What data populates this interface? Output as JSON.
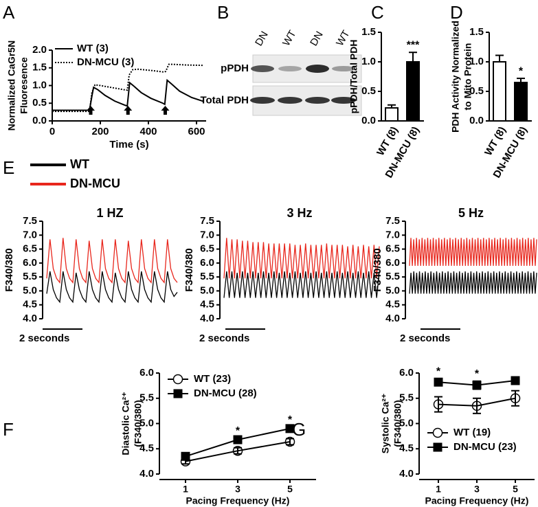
{
  "chart_data": [
    {
      "type": "line",
      "label": "A",
      "xlabel": "Time (s)",
      "ylabel": [
        "Normalized CaGr5N",
        "Fluoresence"
      ],
      "xlim": [
        0,
        640
      ],
      "xticks": [
        0,
        200,
        400,
        600
      ],
      "ylim": [
        0,
        2
      ],
      "yticks": [
        {
          "value": 0,
          "label": "0.0"
        },
        {
          "value": 0.5,
          "label": "0.5"
        },
        {
          "value": 1,
          "label": "1.0"
        },
        {
          "value": 1.5,
          "label": "1.5"
        },
        {
          "value": 2,
          "label": "2.0"
        }
      ],
      "legend": "upper left",
      "arrows": [
        160,
        315,
        470
      ],
      "series": [
        {
          "name": "WT (3)",
          "color": "#000000",
          "dash": "solid",
          "x": [
            0,
            155,
            165,
            172,
            190,
            220,
            260,
            300,
            312,
            322,
            340,
            370,
            410,
            460,
            468,
            478,
            495,
            530,
            580,
            630
          ],
          "values": [
            0.3,
            0.3,
            0.7,
            0.95,
            0.88,
            0.72,
            0.56,
            0.45,
            0.42,
            1.08,
            0.98,
            0.8,
            0.64,
            0.5,
            0.47,
            1.15,
            1.05,
            0.84,
            0.66,
            0.55
          ]
        },
        {
          "name": "DN-MCU (3)",
          "color": "#000000",
          "dash": "dotted",
          "x": [
            0,
            155,
            165,
            178,
            200,
            250,
            300,
            312,
            320,
            335,
            360,
            420,
            465,
            472,
            485,
            500,
            560,
            630
          ],
          "values": [
            0.27,
            0.27,
            0.8,
            1.02,
            1.0,
            0.94,
            0.88,
            0.87,
            1.3,
            1.45,
            1.46,
            1.42,
            1.38,
            1.4,
            1.6,
            1.6,
            1.58,
            1.57
          ]
        }
      ]
    },
    {
      "type": "blot",
      "label": "B",
      "lanes": [
        "DN",
        "WT",
        "DN",
        "WT"
      ],
      "rows": [
        "pPDH",
        "Total PDH"
      ]
    },
    {
      "type": "bar",
      "label": "C",
      "ylabel": [
        "pPDH/Total PDH"
      ],
      "categories": [
        "WT (8)",
        "DN-MCU (8)"
      ],
      "values": [
        0.22,
        1.0
      ],
      "errors": [
        0.05,
        0.16
      ],
      "colors": [
        "#ffffff",
        "#000000"
      ],
      "annotations": [
        null,
        "***"
      ],
      "ylim": [
        0,
        1.5
      ],
      "yticks": [
        {
          "value": 0,
          "label": "0.0"
        },
        {
          "value": 0.5,
          "label": "0.5"
        },
        {
          "value": 1,
          "label": "1.0"
        },
        {
          "value": 1.5,
          "label": "1.5"
        }
      ]
    },
    {
      "type": "bar",
      "label": "D",
      "ylabel": [
        "PDH Activity Normalized",
        "to Mito Protein"
      ],
      "categories": [
        "WT (8)",
        "DN-MCU (8)"
      ],
      "values": [
        1.0,
        0.65
      ],
      "errors": [
        0.11,
        0.07
      ],
      "colors": [
        "#ffffff",
        "#000000"
      ],
      "annotations": [
        null,
        "*"
      ],
      "ylim": [
        0,
        1.5
      ],
      "yticks": [
        {
          "value": 0,
          "label": "0.0"
        },
        {
          "value": 0.5,
          "label": "0.5"
        },
        {
          "value": 1,
          "label": "1.0"
        },
        {
          "value": 1.5,
          "label": "1.5"
        }
      ]
    },
    {
      "type": "trace",
      "label": "E",
      "legend": [
        {
          "name": "WT",
          "color": "#000000"
        },
        {
          "name": "DN-MCU",
          "color": "#e8261c"
        }
      ],
      "panels": [
        {
          "title": "1 HZ",
          "ylabel": "F340/380",
          "scalebar": "2 seconds",
          "ylim": [
            4,
            7.5
          ],
          "yticks": [
            {
              "value": 4,
              "label": "4.0"
            },
            {
              "value": 4.5,
              "label": "4.5"
            },
            {
              "value": 5,
              "label": "5.0"
            },
            {
              "value": 5.5,
              "label": "5.5"
            },
            {
              "value": 6,
              "label": "6.0"
            },
            {
              "value": 6.5,
              "label": "6.5"
            },
            {
              "value": 7,
              "label": "7.0"
            },
            {
              "value": 7.5,
              "label": "7.5"
            }
          ],
          "series": [
            {
              "values": [
                4.9,
                5.7,
                5.05,
                4.75,
                4.6,
                5.7,
                5.05,
                4.75,
                4.6,
                5.65,
                5.05,
                4.75,
                4.6,
                5.7,
                5.05,
                4.75,
                4.6,
                5.7,
                5.05,
                4.75,
                4.6,
                5.65,
                5.05,
                4.75,
                4.6,
                5.7,
                5.05,
                4.75,
                4.6,
                5.7,
                5.05,
                4.75,
                4.6,
                5.7,
                5.05,
                4.75,
                4.6,
                5.7,
                5.05,
                4.8,
                4.95
              ]
            },
            {
              "values": [
                5.45,
                6.85,
                5.8,
                5.45,
                5.3,
                6.9,
                5.8,
                5.45,
                5.3,
                6.85,
                5.8,
                5.45,
                5.3,
                6.8,
                5.8,
                5.45,
                5.3,
                6.85,
                5.8,
                5.45,
                5.3,
                6.85,
                5.8,
                5.45,
                5.3,
                6.8,
                5.8,
                5.45,
                5.3,
                6.85,
                5.8,
                5.45,
                5.3,
                6.85,
                5.8,
                5.45,
                5.3,
                6.85,
                5.8,
                5.45,
                5.3
              ]
            }
          ]
        },
        {
          "title": "3 Hz",
          "ylabel": "F340/380",
          "scalebar": "2 seconds",
          "ylim": [
            4,
            7.5
          ],
          "yticks": [
            {
              "value": 4,
              "label": "4.0"
            },
            {
              "value": 4.5,
              "label": "4.5"
            },
            {
              "value": 5,
              "label": "5.0"
            },
            {
              "value": 5.5,
              "label": "5.5"
            },
            {
              "value": 6,
              "label": "6.0"
            },
            {
              "value": 6.5,
              "label": "6.5"
            },
            {
              "value": 7,
              "label": "7.0"
            },
            {
              "value": 7.5,
              "label": "7.5"
            }
          ],
          "series": [
            {
              "values": [
                4.75,
                5.7,
                4.75,
                5.7,
                4.75,
                5.65,
                4.75,
                5.7,
                4.75,
                5.65,
                4.75,
                5.7,
                4.75,
                5.65,
                4.75,
                5.7,
                4.75,
                5.65,
                4.75,
                5.7,
                4.75,
                5.65,
                4.75,
                5.7,
                4.75,
                5.65,
                4.75,
                5.7,
                4.75,
                5.65,
                4.75,
                5.7,
                4.75,
                5.65,
                4.75,
                5.7,
                4.75,
                5.65,
                4.75,
                5.7,
                4.75,
                5.65,
                4.75,
                5.7,
                4.75,
                5.65,
                4.75,
                5.7,
                4.75,
                5.65,
                4.75,
                5.7,
                4.75,
                5.65,
                4.75,
                5.7,
                4.75,
                5.65,
                4.75,
                5.7
              ]
            },
            {
              "values": [
                5.45,
                6.9,
                5.45,
                6.85,
                5.45,
                6.85,
                5.45,
                6.8,
                5.45,
                6.8,
                5.45,
                6.75,
                5.45,
                6.75,
                5.45,
                6.75,
                5.45,
                6.7,
                5.45,
                6.7,
                5.45,
                6.7,
                5.45,
                6.7,
                5.45,
                6.7,
                5.45,
                6.65,
                5.45,
                6.65,
                5.45,
                6.7,
                5.45,
                6.65,
                5.45,
                6.65,
                5.45,
                6.65,
                5.45,
                6.7,
                5.45,
                6.65,
                5.45,
                6.65,
                5.45,
                6.65,
                5.45,
                6.6,
                5.45,
                6.65,
                5.45,
                6.6,
                5.45,
                6.65,
                5.45,
                6.6,
                5.45,
                6.65,
                5.45,
                6.6
              ]
            }
          ]
        },
        {
          "title": "5 Hz",
          "ylabel": "F340/380",
          "scalebar": "2 seconds",
          "ylim": [
            4,
            7.5
          ],
          "yticks": [
            {
              "value": 4,
              "label": "4.0"
            },
            {
              "value": 4.5,
              "label": "4.5"
            },
            {
              "value": 5,
              "label": "5.0"
            },
            {
              "value": 5.5,
              "label": "5.5"
            },
            {
              "value": 6,
              "label": "6.0"
            },
            {
              "value": 6.5,
              "label": "6.5"
            },
            {
              "value": 7,
              "label": "7.0"
            },
            {
              "value": 7.5,
              "label": "7.5"
            }
          ],
          "series": [
            {
              "values": [
                4.9,
                5.65,
                4.9,
                5.7,
                4.9,
                5.65,
                4.9,
                5.7,
                4.9,
                5.65,
                4.9,
                5.7,
                4.9,
                5.65,
                4.9,
                5.7,
                4.9,
                5.65,
                4.9,
                5.7,
                4.9,
                5.65,
                4.9,
                5.7,
                4.9,
                5.65,
                4.9,
                5.7,
                4.9,
                5.65,
                4.9,
                5.7,
                4.9,
                5.65,
                4.9,
                5.7,
                4.9,
                5.65,
                4.9,
                5.7,
                4.9,
                5.65,
                4.9,
                5.7,
                4.9,
                5.65,
                4.9,
                5.7,
                4.9,
                5.65,
                4.9,
                5.7,
                4.9,
                5.65,
                4.9,
                5.7,
                4.9,
                5.65,
                4.9,
                5.7,
                4.9,
                5.65,
                4.9,
                5.7,
                4.9,
                5.65,
                4.9,
                5.7,
                4.9,
                5.65,
                4.9,
                5.7,
                4.9,
                5.65,
                4.9,
                5.7,
                4.9,
                5.65,
                4.9,
                5.7,
                4.9,
                5.65,
                4.9,
                5.7,
                4.9,
                5.65,
                4.9,
                5.7,
                4.9,
                5.65
              ]
            },
            {
              "values": [
                5.9,
                6.9,
                5.9,
                6.85,
                5.9,
                6.9,
                5.9,
                6.85,
                5.9,
                6.9,
                5.9,
                6.85,
                5.9,
                6.9,
                5.9,
                6.85,
                5.9,
                6.9,
                5.9,
                6.85,
                5.9,
                6.9,
                5.9,
                6.85,
                5.9,
                6.9,
                5.9,
                6.85,
                5.9,
                6.9,
                5.9,
                6.85,
                5.9,
                6.9,
                5.9,
                6.85,
                5.9,
                6.9,
                5.9,
                6.85,
                5.9,
                6.9,
                5.9,
                6.85,
                5.9,
                6.9,
                5.9,
                6.85,
                5.9,
                6.9,
                5.9,
                6.85,
                5.9,
                6.9,
                5.9,
                6.85,
                5.9,
                6.9,
                5.9,
                6.85,
                5.9,
                6.9,
                5.9,
                6.85,
                5.9,
                6.9,
                5.9,
                6.85,
                5.9,
                6.9,
                5.9,
                6.85,
                5.9,
                6.9,
                5.9,
                6.85,
                5.9,
                6.9,
                5.9,
                6.85,
                5.9,
                6.9,
                5.9,
                6.85,
                5.9,
                6.9,
                5.9,
                6.85,
                5.9,
                6.9,
                5.9,
                6.85
              ]
            }
          ]
        }
      ]
    },
    {
      "type": "errorline",
      "label": "F",
      "ylabel": [
        "Diastolic Ca²⁺",
        "(F340/380)"
      ],
      "xlabel": "Pacing Frequency (Hz)",
      "x": [
        1,
        3,
        5
      ],
      "xlim": [
        0,
        6
      ],
      "xticks": [
        1,
        3,
        5
      ],
      "ylim": [
        4,
        6
      ],
      "yticks": [
        {
          "value": 4,
          "label": "4.0"
        },
        {
          "value": 4.5,
          "label": "4.5"
        },
        {
          "value": 5,
          "label": "5.0"
        },
        {
          "value": 5.5,
          "label": "5.5"
        },
        {
          "value": 6,
          "label": "6.0"
        }
      ],
      "legend": "upper left",
      "annotations": [
        null,
        "*",
        "*"
      ],
      "series": [
        {
          "name": "WT (23)",
          "color": "#000000",
          "marker": "open-circle",
          "values": [
            4.25,
            4.46,
            4.64
          ],
          "errors": [
            0.05,
            0.06,
            0.06
          ]
        },
        {
          "name": "DN-MCU (28)",
          "color": "#000000",
          "marker": "filled-square",
          "values": [
            4.35,
            4.68,
            4.9
          ],
          "errors": [
            0.03,
            0.03,
            0.03
          ]
        }
      ]
    },
    {
      "type": "errorline",
      "label": "G",
      "ylabel": [
        "Systolic Ca²⁺",
        "(F340/380)"
      ],
      "xlabel": "Pacing Frequency (Hz)",
      "x": [
        1,
        3,
        5
      ],
      "xlim": [
        0,
        6
      ],
      "xticks": [
        1,
        3,
        5
      ],
      "ylim": [
        4,
        6
      ],
      "yticks": [
        {
          "value": 4,
          "label": "4.0"
        },
        {
          "value": 4.5,
          "label": "4.5"
        },
        {
          "value": 5,
          "label": "5.0"
        },
        {
          "value": 5.5,
          "label": "5.5"
        },
        {
          "value": 6,
          "label": "6.0"
        }
      ],
      "legend": "lower left",
      "annotations": [
        "*",
        "*",
        null
      ],
      "series": [
        {
          "name": "WT (19)",
          "color": "#000000",
          "marker": "open-circle",
          "values": [
            5.38,
            5.35,
            5.5
          ],
          "errors": [
            0.15,
            0.15,
            0.15
          ]
        },
        {
          "name": "DN-MCU (23)",
          "color": "#000000",
          "marker": "filled-square",
          "values": [
            5.82,
            5.76,
            5.85
          ],
          "errors": [
            0.07,
            0.08,
            0.06
          ]
        }
      ]
    }
  ]
}
